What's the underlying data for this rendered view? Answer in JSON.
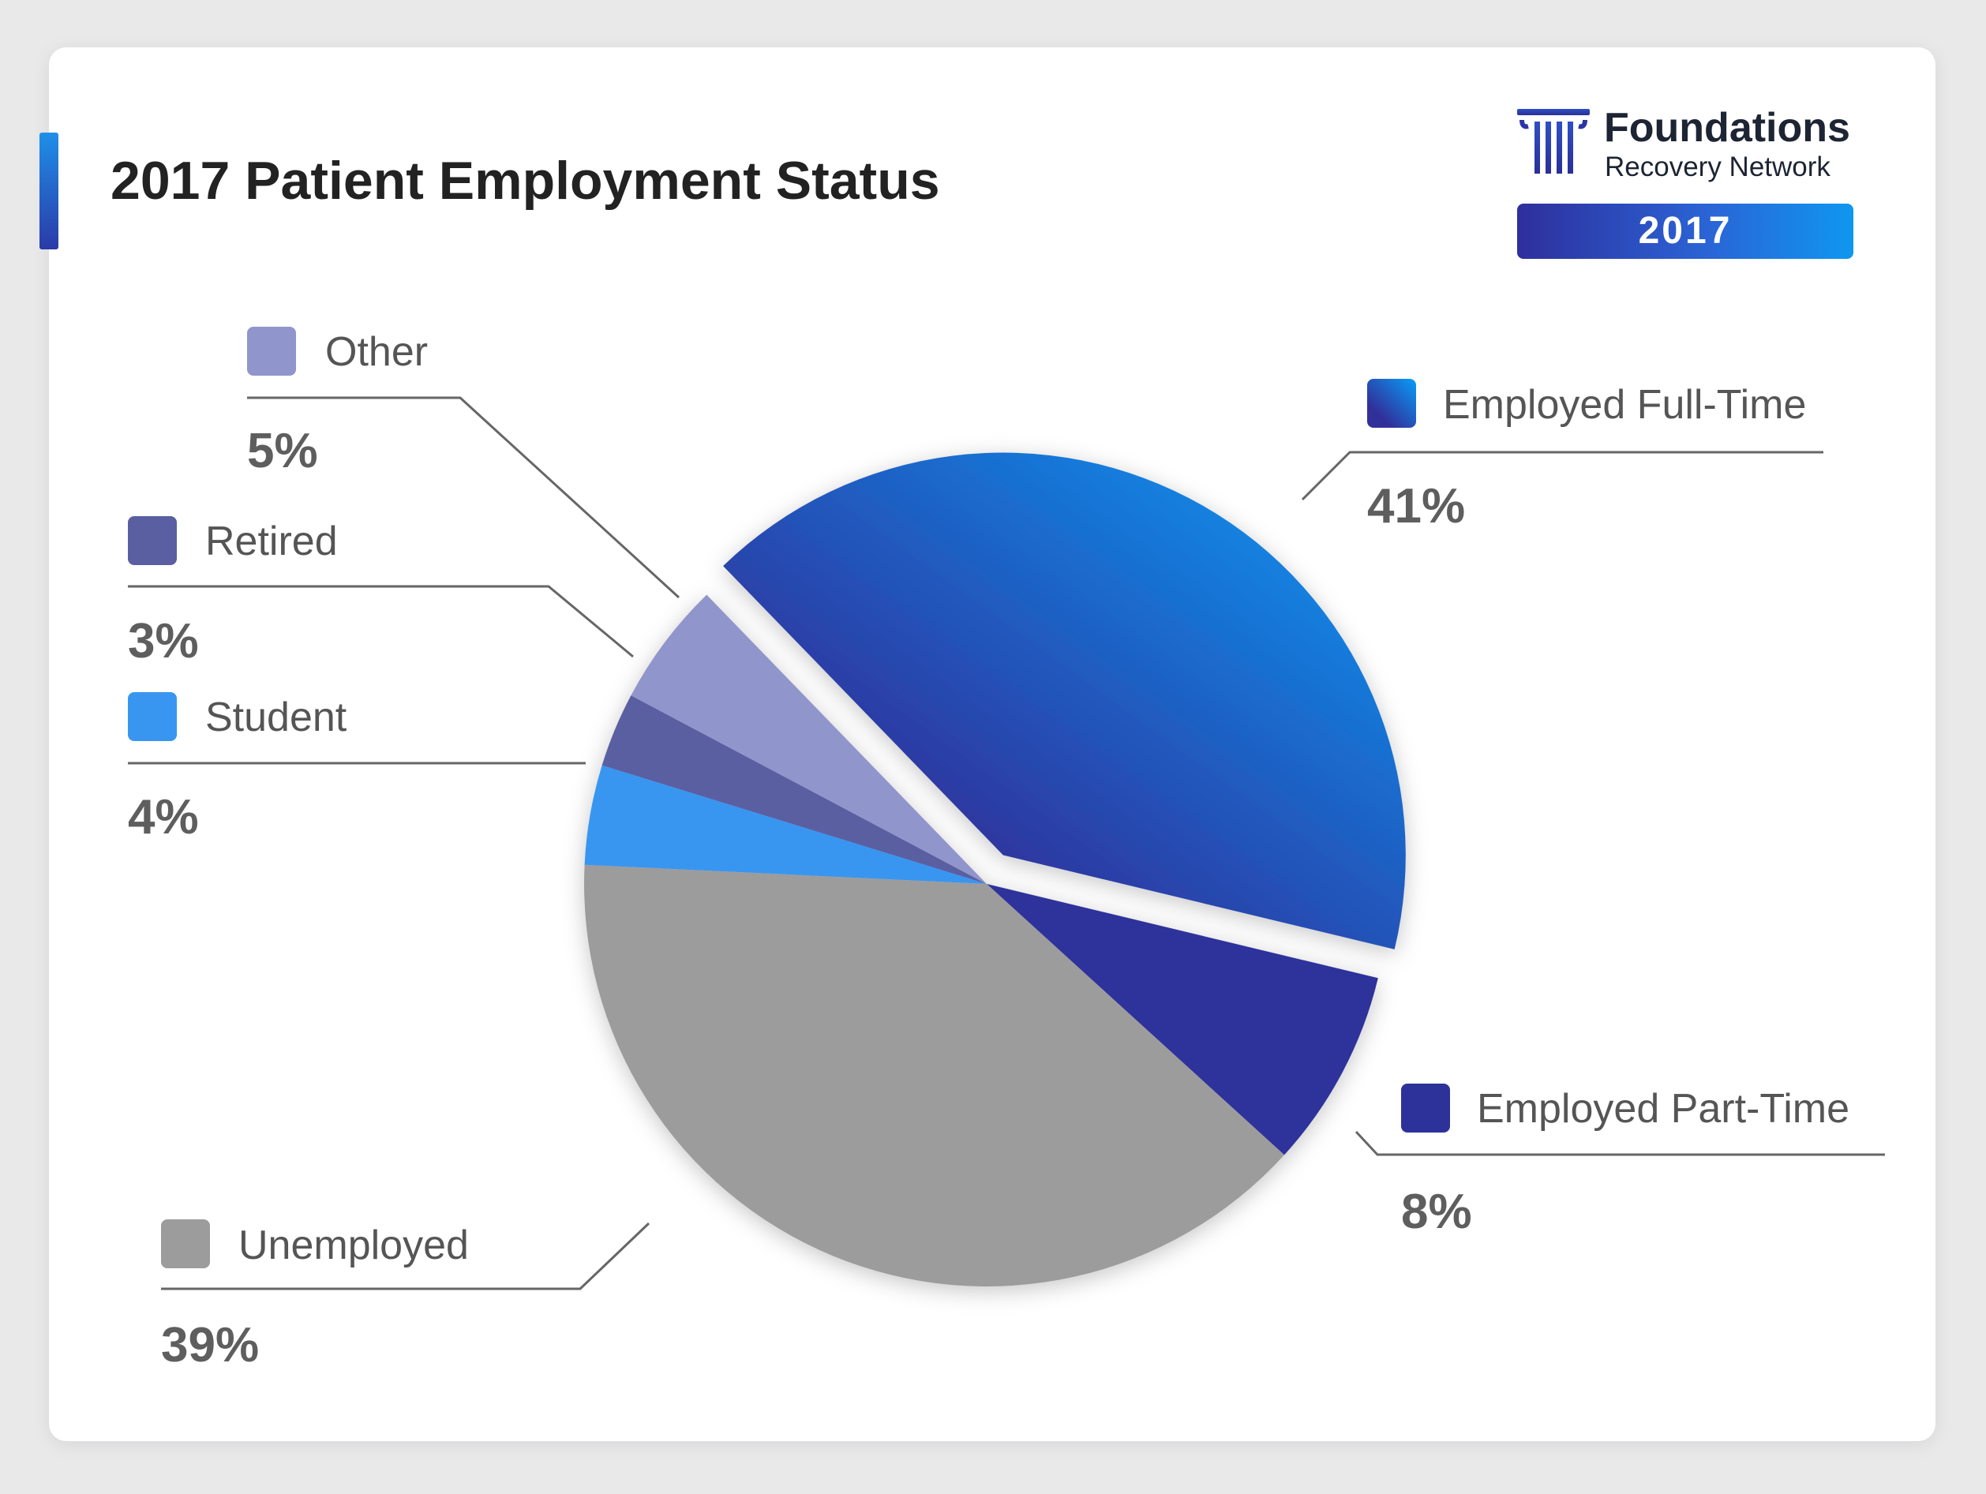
{
  "header": {
    "title": "2017 Patient Employment Status"
  },
  "brand": {
    "name": "Foundations",
    "subtitle": "Recovery Network",
    "year": "2017"
  },
  "colors": {
    "full_time_start": "#31309a",
    "full_time_end": "#0a96f2",
    "part_time": "#2d329b",
    "unemployed": "#9c9c9c",
    "student": "#3996f0",
    "retired": "#5a5fa2",
    "other": "#9096cb",
    "leader_line": "#666666"
  },
  "chart_data": {
    "type": "pie",
    "title": "2017 Patient Employment Status",
    "slices": [
      {
        "label": "Employed Full-Time",
        "value": 41,
        "value_label": "41%",
        "color": "#1e6fd9",
        "exploded": true
      },
      {
        "label": "Employed Part-Time",
        "value": 8,
        "value_label": "8%",
        "color": "#2d329b",
        "exploded": false
      },
      {
        "label": "Unemployed",
        "value": 39,
        "value_label": "39%",
        "color": "#9c9c9c",
        "exploded": false
      },
      {
        "label": "Student",
        "value": 4,
        "value_label": "4%",
        "color": "#3996f0",
        "exploded": false
      },
      {
        "label": "Retired",
        "value": 3,
        "value_label": "3%",
        "color": "#5a5fa2",
        "exploded": false
      },
      {
        "label": "Other",
        "value": 5,
        "value_label": "5%",
        "color": "#9096cb",
        "exploded": false
      }
    ]
  }
}
